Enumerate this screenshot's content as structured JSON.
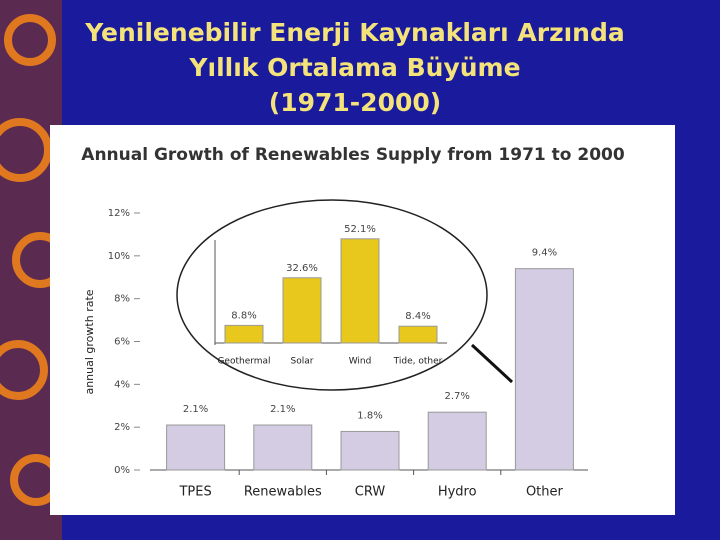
{
  "slide": {
    "title_lines": [
      "Yenilenebilir Enerji Kaynakları Arzında",
      "Yıllık Ortalama Büyüme",
      "(1971-2000)"
    ]
  },
  "chart_data": [
    {
      "type": "bar",
      "title": "Annual Growth of Renewables Supply from 1971 to 2000",
      "ylabel": "annual growth rate",
      "categories": [
        "TPES",
        "Renewables",
        "CRW",
        "Hydro",
        "Other"
      ],
      "values": [
        2.1,
        2.1,
        1.8,
        2.7,
        9.4
      ],
      "value_labels": [
        "2.1%",
        "2.1%",
        "1.8%",
        "2.7%",
        "9.4%"
      ],
      "color": "#d4cce2",
      "ylim": [
        0,
        12
      ],
      "yticks": [
        {
          "value": 0,
          "label": "0%"
        },
        {
          "value": 2,
          "label": "2%"
        },
        {
          "value": 4,
          "label": "4%"
        },
        {
          "value": 6,
          "label": "6%"
        },
        {
          "value": 8,
          "label": "8%"
        },
        {
          "value": 10,
          "label": "10%"
        },
        {
          "value": 12,
          "label": "12%"
        }
      ]
    },
    {
      "type": "bar",
      "categories": [
        "Geothermal",
        "Solar",
        "Wind",
        "Tide, other"
      ],
      "values": [
        8.8,
        32.6,
        52.1,
        8.4
      ],
      "value_labels": [
        "8.8%",
        "32.6%",
        "52.1%",
        "8.4%"
      ],
      "color": "#e8c81c"
    }
  ]
}
